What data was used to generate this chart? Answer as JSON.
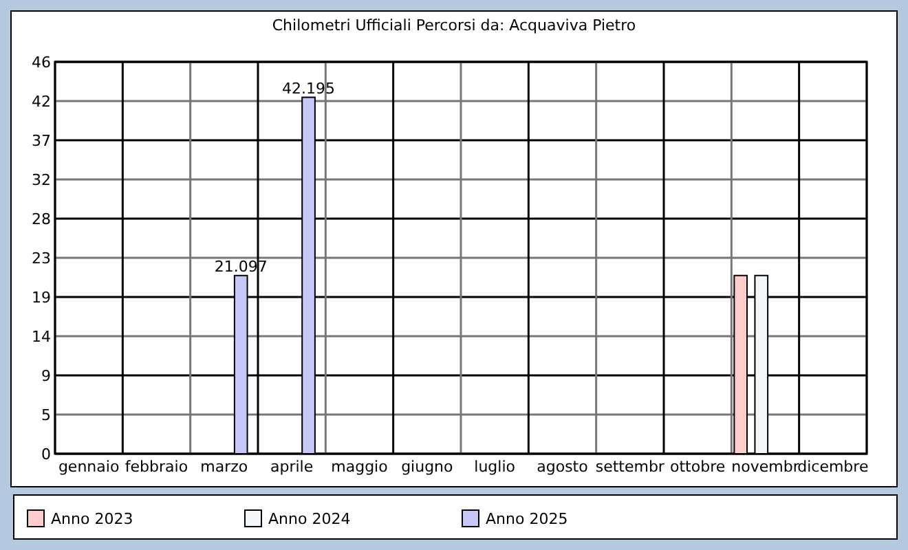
{
  "chart_data": {
    "type": "bar",
    "title": "Chilometri Ufficiali Percorsi da: Acquaviva Pietro",
    "categories": [
      "gennaio",
      "febbraio",
      "marzo",
      "aprile",
      "maggio",
      "giugno",
      "luglio",
      "agosto",
      "settembr",
      "ottobre",
      "novembr",
      "dicembre"
    ],
    "series": [
      {
        "name": "Anno 2023",
        "color": "#ffcccc",
        "values": [
          null,
          null,
          null,
          null,
          null,
          null,
          null,
          null,
          null,
          null,
          21.1,
          null
        ]
      },
      {
        "name": "Anno 2024",
        "color": "#f4f7f9",
        "values": [
          null,
          null,
          null,
          null,
          null,
          null,
          null,
          null,
          null,
          null,
          21.1,
          null
        ]
      },
      {
        "name": "Anno 2025",
        "color": "#c8c8f8",
        "values": [
          null,
          null,
          21.097,
          42.195,
          null,
          null,
          null,
          null,
          null,
          null,
          null,
          null
        ],
        "value_labels": [
          null,
          null,
          "21.097",
          "42.195",
          null,
          null,
          null,
          null,
          null,
          null,
          null,
          null
        ]
      }
    ],
    "ylim": [
      0,
      46.39
    ],
    "yticks": [
      0,
      {
        "value": 4.639,
        "label": "5"
      },
      {
        "value": 9.278,
        "label": "9"
      },
      {
        "value": 13.917,
        "label": "14"
      },
      {
        "value": 18.556,
        "label": "19"
      },
      {
        "value": 23.195,
        "label": "23"
      },
      {
        "value": 27.834,
        "label": "28"
      },
      {
        "value": 32.473,
        "label": "32"
      },
      {
        "value": 37.112,
        "label": "37"
      },
      {
        "value": 41.751,
        "label": "42"
      },
      {
        "value": 46.39,
        "label": "46"
      }
    ],
    "grid": true,
    "legend": "bottom"
  }
}
